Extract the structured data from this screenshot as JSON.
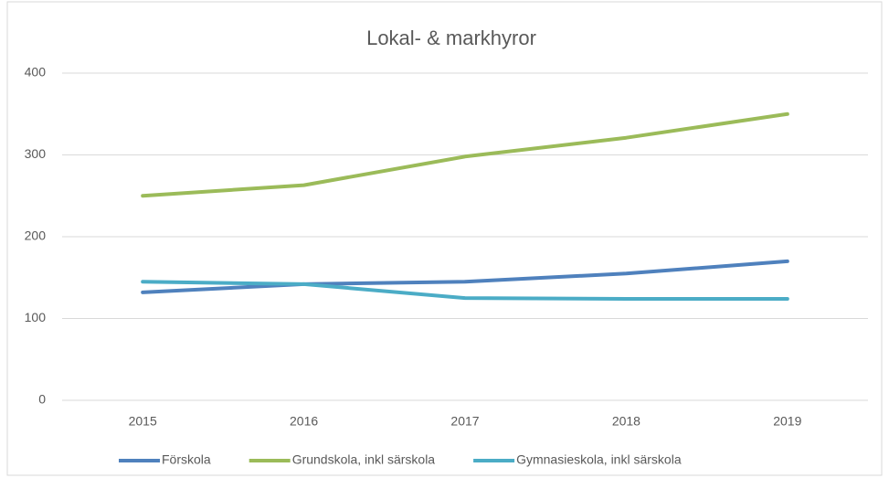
{
  "chart_data": {
    "type": "line",
    "title": "Lokal- & markhyror",
    "categories": [
      "2015",
      "2016",
      "2017",
      "2018",
      "2019"
    ],
    "series": [
      {
        "name": "Förskola",
        "color": "#4f81bd",
        "values": [
          132,
          142,
          145,
          155,
          170
        ]
      },
      {
        "name": "Grundskola, inkl särskola",
        "color": "#9bbb59",
        "values": [
          250,
          263,
          298,
          321,
          350
        ]
      },
      {
        "name": "Gymnasieskola, inkl särskola",
        "color": "#4bacc6",
        "values": [
          145,
          142,
          125,
          124,
          124
        ]
      }
    ],
    "ylim": [
      0,
      400
    ],
    "yticks": [
      0,
      100,
      200,
      300,
      400
    ],
    "grid": true,
    "legend": "bottom"
  }
}
